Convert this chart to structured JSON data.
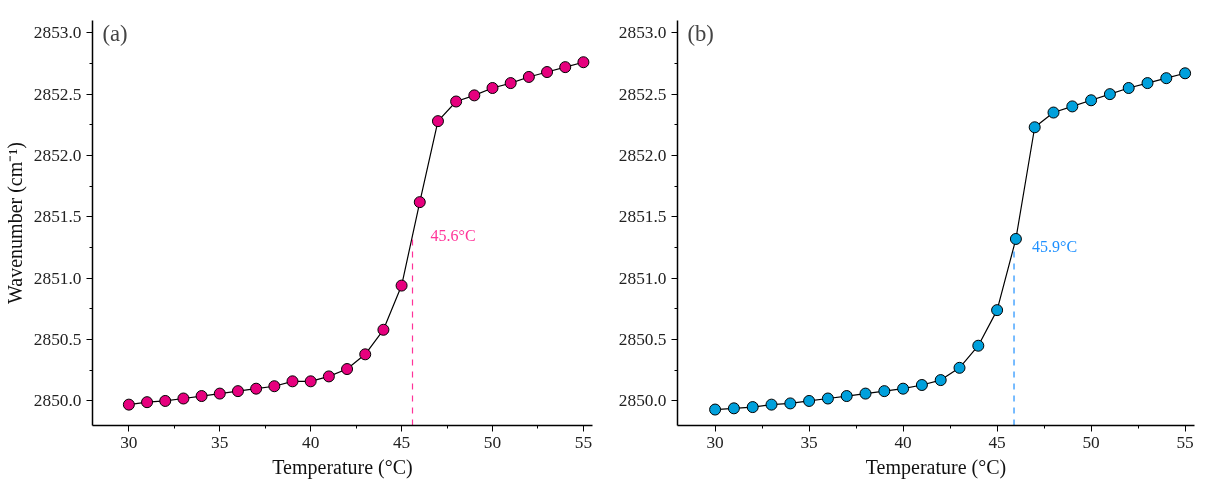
{
  "chart_data": [
    {
      "type": "line",
      "title": "(a)",
      "xlabel": "Temperature (°C)",
      "ylabel": "Wavenumber (cm⁻¹)",
      "x": [
        30,
        31,
        32,
        33,
        34,
        35,
        36,
        37,
        38,
        39,
        40,
        41,
        42,
        43,
        44,
        45,
        46,
        47,
        48,
        49,
        50,
        51,
        52,
        53,
        54,
        55
      ],
      "series": [
        {
          "color": "#e6007e",
          "values": [
            2849.97,
            2849.99,
            2850.0,
            2850.02,
            2850.04,
            2850.06,
            2850.08,
            2850.1,
            2850.12,
            2850.16,
            2850.16,
            2850.2,
            2850.26,
            2850.38,
            2850.58,
            2850.94,
            2851.62,
            2852.28,
            2852.44,
            2852.49,
            2852.55,
            2852.59,
            2852.64,
            2852.68,
            2852.72,
            2852.76
          ]
        }
      ],
      "xlim": [
        28,
        55.5
      ],
      "xticks": [
        30,
        35,
        40,
        45,
        50,
        55
      ],
      "ylim": [
        2849.8,
        2853.1
      ],
      "yticks": [
        {
          "value": 2850,
          "label": "2850.0"
        },
        {
          "value": 2850.5,
          "label": "2850.5"
        },
        {
          "value": 2851,
          "label": "2851.0"
        },
        {
          "value": 2851.5,
          "label": "2851.5"
        },
        {
          "value": 2852,
          "label": "2852.0"
        },
        {
          "value": 2852.5,
          "label": "2852.5"
        },
        {
          "value": 2853,
          "label": "2853.0"
        }
      ],
      "ref_lines": [
        {
          "axis": "x",
          "value": 45.6,
          "label": "45.6°C",
          "color": "#ff3399",
          "line_style": "dashed"
        }
      ],
      "marker": "circle",
      "line_style": "solid",
      "grid": false
    },
    {
      "type": "line",
      "title": "(b)",
      "xlabel": "Temperature (°C)",
      "x": [
        30,
        31,
        32,
        33,
        34,
        35,
        36,
        37,
        38,
        39,
        40,
        41,
        42,
        43,
        44,
        45,
        46,
        47,
        48,
        49,
        50,
        51,
        52,
        53,
        54,
        55
      ],
      "series": [
        {
          "color": "#00a0dc",
          "values": [
            2849.93,
            2849.94,
            2849.95,
            2849.97,
            2849.98,
            2850.0,
            2850.02,
            2850.04,
            2850.06,
            2850.08,
            2850.1,
            2850.13,
            2850.17,
            2850.27,
            2850.45,
            2850.74,
            2851.32,
            2852.23,
            2852.35,
            2852.4,
            2852.45,
            2852.5,
            2852.55,
            2852.59,
            2852.63,
            2852.67
          ]
        }
      ],
      "xlim": [
        28,
        55.5
      ],
      "xticks": [
        30,
        35,
        40,
        45,
        50,
        55
      ],
      "ylim": [
        2849.8,
        2853.1
      ],
      "yticks": [
        {
          "value": 2850,
          "label": "2850.0"
        },
        {
          "value": 2850.5,
          "label": "2850.5"
        },
        {
          "value": 2851,
          "label": "2851.0"
        },
        {
          "value": 2851.5,
          "label": "2851.5"
        },
        {
          "value": 2852,
          "label": "2852.0"
        },
        {
          "value": 2852.5,
          "label": "2852.5"
        },
        {
          "value": 2853,
          "label": "2853.0"
        }
      ],
      "ref_lines": [
        {
          "axis": "x",
          "value": 45.9,
          "label": "45.9°C",
          "color": "#1e90ff",
          "line_style": "dashed"
        }
      ],
      "marker": "circle",
      "line_style": "solid",
      "grid": false
    }
  ]
}
